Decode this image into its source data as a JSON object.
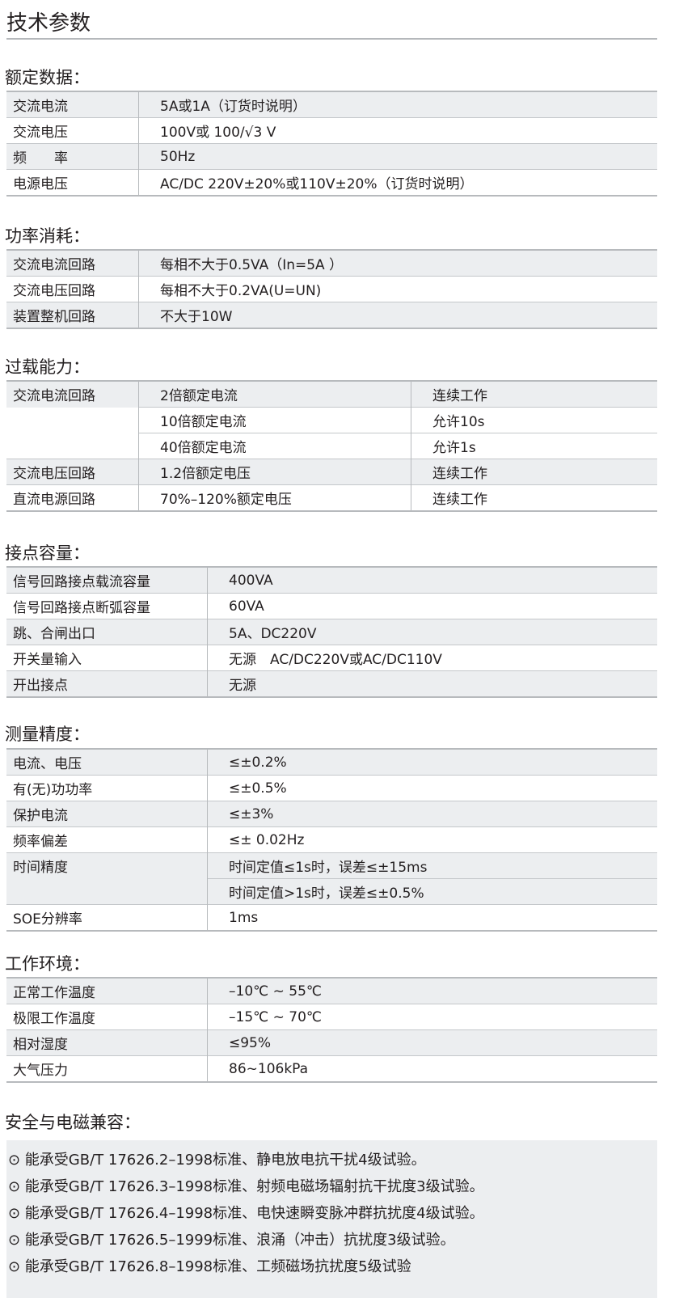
{
  "title": "技术参数",
  "sections": [
    {
      "heading": "额定数据：",
      "rows": [
        [
          "交流电流",
          "5A或1A（订货时说明）"
        ],
        [
          "交流电压",
          "100V或 100/√3 V"
        ],
        [
          "频　　率",
          "50Hz"
        ],
        [
          "电源电压",
          "AC/DC 220V±20%或110V±20%（订货时说明）"
        ]
      ]
    },
    {
      "heading": "功率消耗：",
      "rows": [
        [
          "交流电流回路",
          "每相不大于0.5VA（In=5A ）"
        ],
        [
          "交流电压回路",
          "每相不大于0.2VA(U=UN)"
        ],
        [
          "装置整机回路",
          "不大于10W"
        ]
      ]
    },
    {
      "heading": "过载能力：",
      "rows": [
        [
          "交流电流回路",
          "2倍额定电流",
          "连续工作"
        ],
        [
          "",
          "10倍额定电流",
          "允许10s"
        ],
        [
          "",
          "40倍额定电流",
          "允许1s"
        ],
        [
          "交流电压回路",
          "1.2倍额定电压",
          "连续工作"
        ],
        [
          "直流电源回路",
          "70%–120%额定电压",
          "连续工作"
        ]
      ]
    },
    {
      "heading": "接点容量：",
      "rows": [
        [
          "信号回路接点载流容量",
          "400VA"
        ],
        [
          "信号回路接点断弧容量",
          "60VA"
        ],
        [
          "跳、合闸出口",
          "5A、DC220V"
        ],
        [
          "开关量输入",
          "无源　AC/DC220V或AC/DC110V"
        ],
        [
          "开出接点",
          "无源"
        ]
      ]
    },
    {
      "heading": "测量精度：",
      "rows": [
        [
          "电流、电压",
          "≤±0.2%"
        ],
        [
          "有(无)功功率",
          "≤±0.5%"
        ],
        [
          "保护电流",
          "≤±3%"
        ],
        [
          "频率偏差",
          "≤± 0.02Hz"
        ],
        [
          "时间精度",
          "时间定值≤1s时，误差≤±15ms"
        ],
        [
          "",
          "时间定值>1s时，误差≤±0.5%"
        ],
        [
          "SOE分辨率",
          "1ms"
        ]
      ]
    },
    {
      "heading": "工作环境：",
      "rows": [
        [
          "正常工作温度",
          "–10℃ ~ 55℃"
        ],
        [
          "极限工作温度",
          "–15℃ ~ 70℃"
        ],
        [
          "相对湿度",
          "≤95%"
        ],
        [
          "大气压力",
          "86~106kPa"
        ]
      ]
    }
  ],
  "emc": {
    "heading": "安全与电磁兼容：",
    "bullet_icon": "circled-dot-icon",
    "items": [
      "⊙ 能承受GB/T 17626.2–1998标准、静电放电抗干扰4级试验。",
      "⊙ 能承受GB/T 17626.3–1998标准、射频电磁场辐射抗干扰度3级试验。",
      "⊙ 能承受GB/T 17626.4–1998标准、电快速瞬变脉冲群抗扰度4级试验。",
      "⊙ 能承受GB/T 17626.5–1999标准、浪涌（冲击）抗扰度3级试验。",
      "⊙ 能承受GB/T 17626.8–1998标准、工频磁场抗扰度5级试验"
    ]
  }
}
